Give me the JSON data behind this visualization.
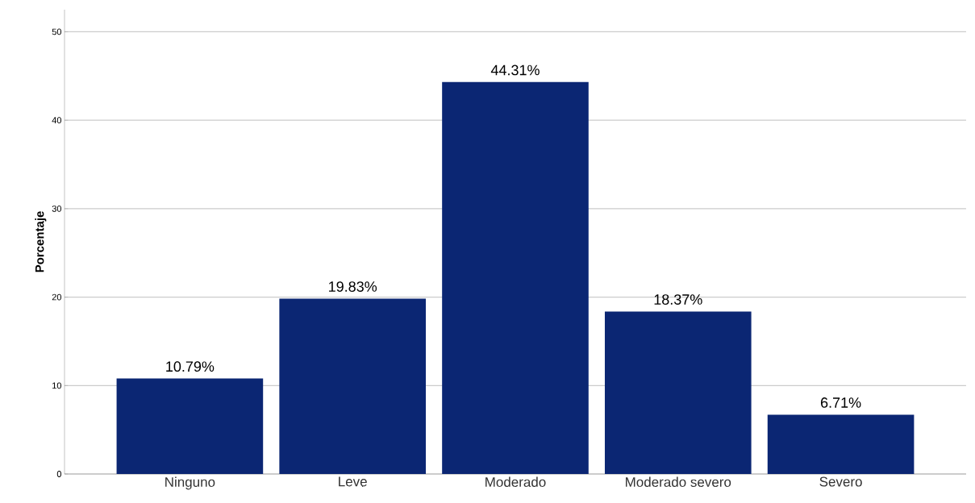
{
  "chart_data": {
    "type": "bar",
    "ylabel": "Porcentaje",
    "categories": [
      "Ninguno",
      "Leve",
      "Moderado",
      "Moderado severo",
      "Severo"
    ],
    "values": [
      10.79,
      19.83,
      44.31,
      18.37,
      6.71
    ],
    "value_labels": [
      "10.79%",
      "19.83%",
      "44.31%",
      "18.37%",
      "6.71%"
    ],
    "color": "#0b2673",
    "ylim": [
      0,
      52.5
    ],
    "yticks": [
      0,
      10,
      20,
      30,
      40,
      50
    ],
    "grid": "y"
  }
}
